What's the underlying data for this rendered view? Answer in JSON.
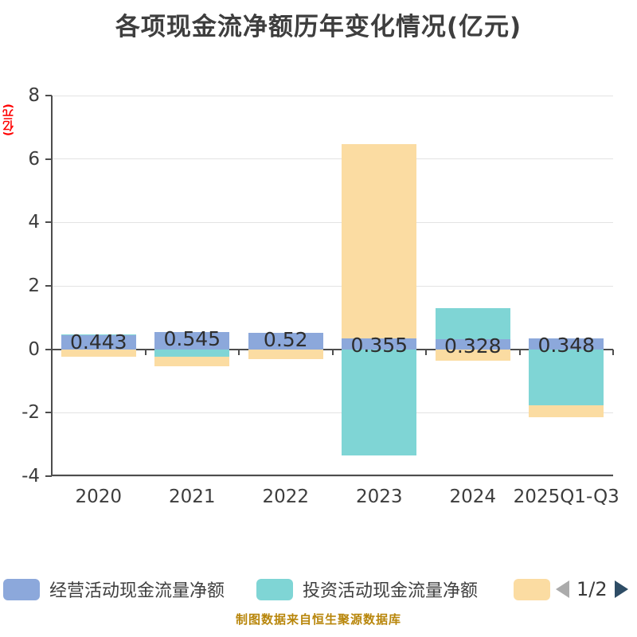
{
  "title": "各项现金流净额历年变化情况(亿元)",
  "y_axis_label": "(亿元)",
  "caption": "制图数据来自恒生聚源数据库",
  "colors": {
    "operating_bar": "#8CA8DB",
    "investment_bar": "#7FD5D5",
    "financing_bar": "#FBDCA2",
    "gridline": "#E3E3E3",
    "axis": "#4D4D4D",
    "title_text": "#3E3E3E",
    "tick_text": "#3D3D3D",
    "value_label_text": "#2E2E2E",
    "unit_label_text": "#FF0000",
    "caption_text": "#B8860B"
  },
  "legend": {
    "items": [
      {
        "label": "经营活动现金流量净额",
        "color": "#8CA8DB"
      },
      {
        "label": "投资活动现金流量净额",
        "color": "#7FD5D5"
      },
      {
        "label": "",
        "color": "#FBDCA2"
      }
    ],
    "pager": {
      "text": "1/2",
      "left_arrow_color": "#ABABAB",
      "right_arrow_color": "#2E4D66"
    }
  },
  "chart_data": {
    "type": "bar",
    "title": "各项现金流净额历年变化情况(亿元)",
    "ylabel": "(亿元)",
    "ylim": [
      -4,
      8
    ],
    "yticks": [
      8,
      6,
      4,
      2,
      0,
      -2,
      -4
    ],
    "grid": true,
    "legend_position": "bottom",
    "categories": [
      "2020",
      "2021",
      "2022",
      "2023",
      "2024",
      "2025Q1-Q3"
    ],
    "series": [
      {
        "name": "经营活动现金流量净额",
        "color": "#8CA8DB",
        "values": [
          0.443,
          0.545,
          0.52,
          0.355,
          0.328,
          0.348
        ],
        "labels": [
          "0.443",
          "0.545",
          "0.52",
          "0.355",
          "0.328",
          "0.348"
        ]
      },
      {
        "name": "投资活动现金流量净额",
        "color": "#7FD5D5",
        "values": [
          0.46,
          -0.23,
          0.3,
          -3.35,
          1.3,
          -1.77
        ]
      },
      {
        "name": "",
        "color": "#FBDCA2",
        "values": [
          -0.24,
          -0.53,
          -0.3,
          6.47,
          -0.35,
          -2.15
        ]
      }
    ]
  }
}
